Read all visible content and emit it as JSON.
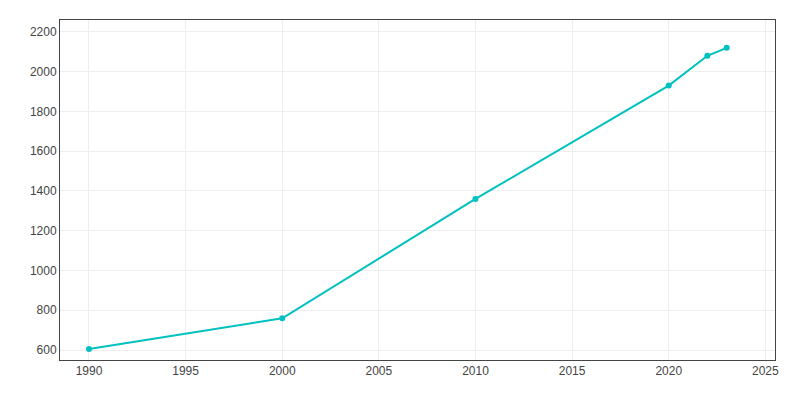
{
  "chart_data": {
    "type": "line",
    "x": [
      1990,
      2000,
      2010,
      2020,
      2022,
      2023
    ],
    "values": [
      605,
      760,
      1360,
      1930,
      2080,
      2120
    ],
    "color": "#00C0C0",
    "marker": "circle",
    "xlim": [
      1988.5,
      2025.5
    ],
    "ylim": [
      550,
      2260
    ],
    "xticks": [
      1990,
      1995,
      2000,
      2005,
      2010,
      2015,
      2020,
      2025
    ],
    "yticks": [
      600,
      800,
      1000,
      1200,
      1400,
      1600,
      1800,
      2000,
      2200
    ],
    "grid": true
  }
}
